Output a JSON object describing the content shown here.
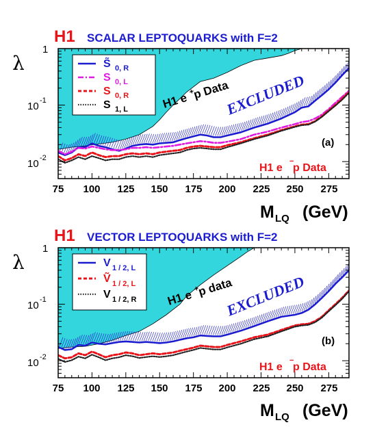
{
  "chart_data": [
    {
      "type": "line",
      "panel_label": "(a)",
      "h1_label": "H1",
      "title": "SCALAR LEPTOQUARKS with F=2",
      "ylabel": "λ",
      "xlabel_main": "M",
      "xlabel_sub": "LQ",
      "xlabel_unit": "(GeV)",
      "xlim": [
        75,
        290
      ],
      "ylim": [
        0.005,
        1
      ],
      "yscale": "log",
      "x_ticks": [
        "75",
        "100",
        "125",
        "150",
        "175",
        "200",
        "225",
        "250",
        "275"
      ],
      "y_tick_labels": [
        {
          "base": "10",
          "exp": "-2"
        },
        {
          "base": "10",
          "exp": "-1"
        },
        {
          "base": "1",
          "exp": ""
        }
      ],
      "annotation_excluded": "EXCLUDED",
      "annotation_epplus_main": "H1 e",
      "annotation_epplus_sup": "+",
      "annotation_epplus_tail": " p Data",
      "annotation_eminus_main": "H1 e",
      "annotation_eminus_sup": "−",
      "annotation_eminus_tail": " p Data",
      "fill_color": "#33d6dc",
      "hatch_color": "#2a2ad0",
      "eplus_limit": {
        "x": [
          75,
          85,
          95,
          105,
          115,
          125,
          135,
          145,
          150,
          155,
          160,
          165,
          170,
          180,
          190,
          200,
          210,
          220,
          230,
          240,
          245,
          250,
          255,
          290
        ],
        "y": [
          0.0165,
          0.018,
          0.019,
          0.0205,
          0.022,
          0.025,
          0.03,
          0.042,
          0.055,
          0.075,
          0.1,
          0.13,
          0.17,
          0.26,
          0.3,
          0.38,
          0.5,
          0.62,
          0.68,
          0.75,
          0.82,
          0.92,
          1.0,
          1.0
        ]
      },
      "series": [
        {
          "name": "S̃ 0, R",
          "legend_main": "S̃",
          "legend_sub": "0, R",
          "color": "#1c1ccf",
          "dash": "solid",
          "x": [
            75,
            80,
            85,
            90,
            95,
            100,
            105,
            110,
            115,
            120,
            125,
            130,
            135,
            140,
            145,
            150,
            155,
            160,
            165,
            170,
            175,
            180,
            185,
            190,
            195,
            200,
            210,
            220,
            230,
            240,
            250,
            255,
            260,
            265,
            270,
            275,
            280,
            285,
            290
          ],
          "y": [
            0.0145,
            0.013,
            0.0145,
            0.018,
            0.018,
            0.021,
            0.019,
            0.018,
            0.0165,
            0.0155,
            0.017,
            0.019,
            0.02,
            0.0205,
            0.02,
            0.021,
            0.0215,
            0.022,
            0.024,
            0.026,
            0.028,
            0.03,
            0.029,
            0.027,
            0.027,
            0.029,
            0.033,
            0.04,
            0.047,
            0.058,
            0.075,
            0.09,
            0.095,
            0.12,
            0.15,
            0.19,
            0.25,
            0.34,
            0.45
          ]
        },
        {
          "name": "S 0, L",
          "legend_main": "S",
          "legend_sub": "0, L",
          "color": "#e01ae0",
          "dash": "dashdot",
          "x": [
            75,
            80,
            85,
            90,
            95,
            100,
            105,
            110,
            115,
            120,
            125,
            130,
            135,
            140,
            145,
            150,
            155,
            160,
            165,
            170,
            175,
            180,
            185,
            190,
            195,
            200,
            210,
            220,
            230,
            240,
            250,
            255,
            260,
            265,
            270,
            275,
            280,
            285,
            290
          ],
          "y": [
            0.0155,
            0.0135,
            0.015,
            0.0175,
            0.017,
            0.0185,
            0.0175,
            0.0165,
            0.016,
            0.016,
            0.0165,
            0.0175,
            0.0175,
            0.018,
            0.0175,
            0.018,
            0.0185,
            0.019,
            0.02,
            0.021,
            0.022,
            0.023,
            0.0225,
            0.0215,
            0.0215,
            0.0225,
            0.025,
            0.03,
            0.034,
            0.04,
            0.046,
            0.05,
            0.052,
            0.058,
            0.068,
            0.085,
            0.11,
            0.14,
            0.18
          ]
        },
        {
          "name": "S 0, R",
          "legend_main": "S",
          "legend_sub": "0, R",
          "color": "#e8141a",
          "dash": "dashed",
          "x": [
            75,
            80,
            85,
            90,
            95,
            100,
            105,
            110,
            115,
            120,
            125,
            130,
            135,
            140,
            145,
            150,
            155,
            160,
            165,
            170,
            175,
            180,
            185,
            190,
            195,
            200,
            210,
            220,
            230,
            240,
            250,
            255,
            260,
            265,
            270,
            275,
            280,
            285,
            290
          ],
          "y": [
            0.0125,
            0.0105,
            0.0115,
            0.0135,
            0.0125,
            0.0145,
            0.013,
            0.012,
            0.0125,
            0.0125,
            0.0135,
            0.014,
            0.0135,
            0.014,
            0.0135,
            0.0145,
            0.015,
            0.0155,
            0.016,
            0.0175,
            0.0185,
            0.019,
            0.0185,
            0.018,
            0.018,
            0.0195,
            0.022,
            0.026,
            0.03,
            0.036,
            0.042,
            0.045,
            0.046,
            0.052,
            0.063,
            0.08,
            0.1,
            0.13,
            0.17
          ]
        },
        {
          "name": "S 1, L",
          "legend_main": "S",
          "legend_sub": "1, L",
          "color": "#222222",
          "dash": "dotted",
          "x": [
            75,
            80,
            85,
            90,
            95,
            100,
            105,
            110,
            115,
            120,
            125,
            130,
            135,
            140,
            145,
            150,
            155,
            160,
            165,
            170,
            175,
            180,
            185,
            190,
            195,
            200,
            210,
            220,
            230,
            240,
            250,
            255,
            260,
            265,
            270,
            275,
            280,
            285,
            290
          ],
          "y": [
            0.011,
            0.0095,
            0.0105,
            0.012,
            0.011,
            0.0125,
            0.0115,
            0.0105,
            0.011,
            0.011,
            0.012,
            0.0125,
            0.012,
            0.0125,
            0.012,
            0.013,
            0.0135,
            0.014,
            0.0145,
            0.016,
            0.017,
            0.0175,
            0.017,
            0.0165,
            0.0165,
            0.018,
            0.021,
            0.025,
            0.029,
            0.035,
            0.041,
            0.044,
            0.045,
            0.051,
            0.062,
            0.078,
            0.098,
            0.125,
            0.165
          ]
        }
      ]
    },
    {
      "type": "line",
      "panel_label": "(b)",
      "h1_label": "H1",
      "title": "VECTOR LEPTOQUARKS with F=2",
      "ylabel": "λ",
      "xlabel_main": "M",
      "xlabel_sub": "LQ",
      "xlabel_unit": "(GeV)",
      "xlim": [
        75,
        290
      ],
      "ylim": [
        0.005,
        1
      ],
      "yscale": "log",
      "x_ticks": [
        "75",
        "100",
        "125",
        "150",
        "175",
        "200",
        "225",
        "250",
        "275"
      ],
      "y_tick_labels": [
        {
          "base": "10",
          "exp": "-2"
        },
        {
          "base": "10",
          "exp": "-1"
        },
        {
          "base": "1",
          "exp": ""
        }
      ],
      "annotation_excluded": "EXCLUDED",
      "annotation_epplus_main": "H1 e",
      "annotation_epplus_sup": "+",
      "annotation_epplus_tail": " p data",
      "annotation_eminus_main": "H1 e",
      "annotation_eminus_sup": "−",
      "annotation_eminus_tail": " p Data",
      "fill_color": "#33d6dc",
      "hatch_color": "#2a2ad0",
      "eplus_limit": {
        "x": [
          75,
          85,
          95,
          105,
          115,
          125,
          135,
          145,
          155,
          165,
          170,
          180,
          190,
          200,
          210,
          215,
          220,
          290
        ],
        "y": [
          0.0165,
          0.0175,
          0.018,
          0.02,
          0.023,
          0.028,
          0.033,
          0.045,
          0.065,
          0.1,
          0.14,
          0.22,
          0.33,
          0.48,
          0.7,
          0.85,
          1.0,
          1.0
        ]
      },
      "series": [
        {
          "name": "V 1/2, L",
          "legend_main": "V",
          "legend_sub": "1 / 2, L",
          "color": "#1c1ccf",
          "dash": "solid",
          "x": [
            75,
            80,
            85,
            90,
            95,
            100,
            105,
            110,
            115,
            120,
            125,
            130,
            135,
            140,
            145,
            150,
            155,
            160,
            165,
            170,
            175,
            180,
            185,
            190,
            195,
            200,
            210,
            220,
            230,
            240,
            250,
            255,
            260,
            265,
            270,
            275,
            280,
            285,
            290
          ],
          "y": [
            0.0175,
            0.0155,
            0.016,
            0.019,
            0.0185,
            0.021,
            0.02,
            0.0195,
            0.0205,
            0.0215,
            0.022,
            0.0215,
            0.021,
            0.0215,
            0.021,
            0.0205,
            0.021,
            0.022,
            0.0235,
            0.025,
            0.026,
            0.028,
            0.0275,
            0.027,
            0.027,
            0.029,
            0.034,
            0.041,
            0.05,
            0.06,
            0.065,
            0.07,
            0.08,
            0.1,
            0.13,
            0.17,
            0.23,
            0.3,
            0.4
          ]
        },
        {
          "name": "Ṽ 1/2, L",
          "legend_main": "Ṽ",
          "legend_sub": "1 / 2, L",
          "color": "#e8141a",
          "dash": "dashed",
          "x": [
            75,
            80,
            85,
            90,
            95,
            100,
            105,
            110,
            115,
            120,
            125,
            130,
            135,
            140,
            145,
            150,
            155,
            160,
            165,
            170,
            175,
            180,
            185,
            190,
            195,
            200,
            210,
            220,
            230,
            240,
            250,
            255,
            260,
            265,
            270,
            275,
            280,
            285,
            290
          ],
          "y": [
            0.0125,
            0.011,
            0.0115,
            0.0135,
            0.0125,
            0.0145,
            0.013,
            0.0115,
            0.0125,
            0.013,
            0.014,
            0.0135,
            0.0125,
            0.013,
            0.0135,
            0.013,
            0.0135,
            0.014,
            0.015,
            0.016,
            0.017,
            0.0185,
            0.018,
            0.0175,
            0.0175,
            0.019,
            0.022,
            0.026,
            0.029,
            0.035,
            0.042,
            0.044,
            0.045,
            0.05,
            0.06,
            0.078,
            0.1,
            0.13,
            0.175
          ]
        },
        {
          "name": "V 1/2, R",
          "legend_main": "V",
          "legend_sub": "1 / 2, R",
          "color": "#222222",
          "dash": "dotted",
          "x": [
            75,
            80,
            85,
            90,
            95,
            100,
            105,
            110,
            115,
            120,
            125,
            130,
            135,
            140,
            145,
            150,
            155,
            160,
            165,
            170,
            175,
            180,
            185,
            190,
            195,
            200,
            210,
            220,
            230,
            240,
            250,
            255,
            260,
            265,
            270,
            275,
            280,
            285,
            290
          ],
          "y": [
            0.0108,
            0.0095,
            0.0102,
            0.0118,
            0.011,
            0.0128,
            0.0115,
            0.0102,
            0.011,
            0.0115,
            0.0125,
            0.012,
            0.0112,
            0.0116,
            0.012,
            0.0116,
            0.012,
            0.0125,
            0.0135,
            0.0145,
            0.0155,
            0.0168,
            0.0163,
            0.0158,
            0.0158,
            0.0172,
            0.02,
            0.024,
            0.027,
            0.033,
            0.04,
            0.042,
            0.043,
            0.048,
            0.058,
            0.075,
            0.096,
            0.125,
            0.17
          ]
        }
      ]
    }
  ]
}
